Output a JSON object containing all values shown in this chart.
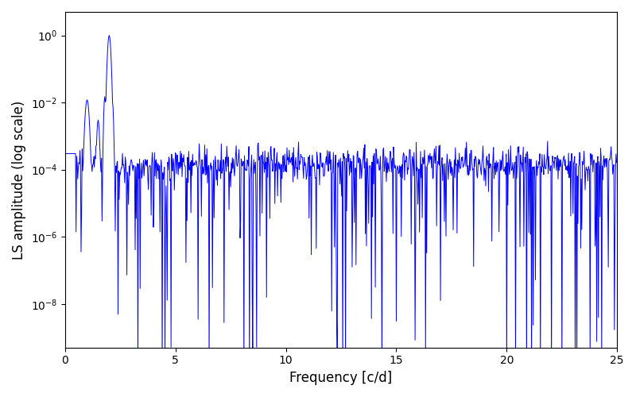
{
  "xlabel": "Frequency [c/d]",
  "ylabel": "LS amplitude (log scale)",
  "title": "",
  "line_color": "#0000FF",
  "line_width": 0.7,
  "xmin": 0,
  "xmax": 25,
  "ymin": 5e-10,
  "ymax": 5,
  "background_color": "#ffffff",
  "figsize": [
    8.0,
    5.0
  ],
  "dpi": 100
}
